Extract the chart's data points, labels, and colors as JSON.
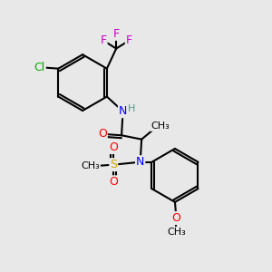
{
  "bg_color": "#e8e8e8",
  "atom_colors": {
    "C": "#000000",
    "H": "#4a9a8a",
    "N": "#0000ff",
    "O": "#ff0000",
    "S": "#ccaa00",
    "F": "#cc00cc",
    "Cl": "#00aa00"
  },
  "bond_color": "#000000",
  "bond_width": 1.5,
  "font_size": 9,
  "fig_size": [
    3.0,
    3.0
  ],
  "dpi": 100,
  "xlim": [
    0,
    10
  ],
  "ylim": [
    0,
    10
  ]
}
